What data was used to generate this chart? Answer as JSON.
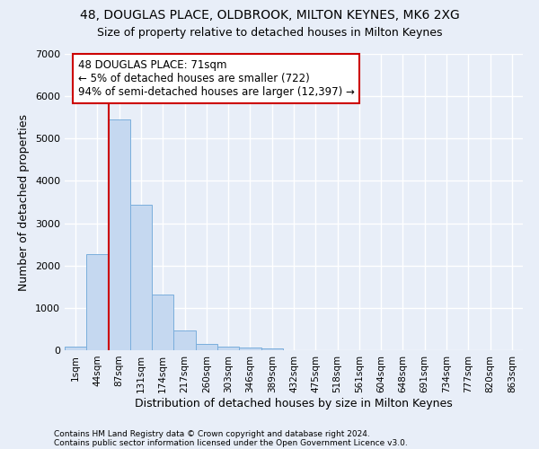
{
  "title1": "48, DOUGLAS PLACE, OLDBROOK, MILTON KEYNES, MK6 2XG",
  "title2": "Size of property relative to detached houses in Milton Keynes",
  "xlabel": "Distribution of detached houses by size in Milton Keynes",
  "ylabel": "Number of detached properties",
  "footnote1": "Contains HM Land Registry data © Crown copyright and database right 2024.",
  "footnote2": "Contains public sector information licensed under the Open Government Licence v3.0.",
  "bar_labels": [
    "1sqm",
    "44sqm",
    "87sqm",
    "131sqm",
    "174sqm",
    "217sqm",
    "260sqm",
    "303sqm",
    "346sqm",
    "389sqm",
    "432sqm",
    "475sqm",
    "518sqm",
    "561sqm",
    "604sqm",
    "648sqm",
    "691sqm",
    "734sqm",
    "777sqm",
    "820sqm",
    "863sqm"
  ],
  "bar_values": [
    75,
    2270,
    5460,
    3440,
    1310,
    460,
    155,
    90,
    55,
    35,
    0,
    0,
    0,
    0,
    0,
    0,
    0,
    0,
    0,
    0,
    0
  ],
  "bar_color": "#c5d8f0",
  "bar_edge_color": "#7aaedc",
  "vline_x": 2.0,
  "vline_color": "#cc0000",
  "annotation_text": "48 DOUGLAS PLACE: 71sqm\n← 5% of detached houses are smaller (722)\n94% of semi-detached houses are larger (12,397) →",
  "annotation_box_color": "white",
  "annotation_box_edge": "#cc0000",
  "ylim": [
    0,
    7000
  ],
  "bg_color": "#e8eef8",
  "grid_color": "white",
  "title_fontsize": 10,
  "subtitle_fontsize": 9,
  "axis_label_fontsize": 9,
  "tick_fontsize": 7.5,
  "annot_fontsize": 8.5
}
